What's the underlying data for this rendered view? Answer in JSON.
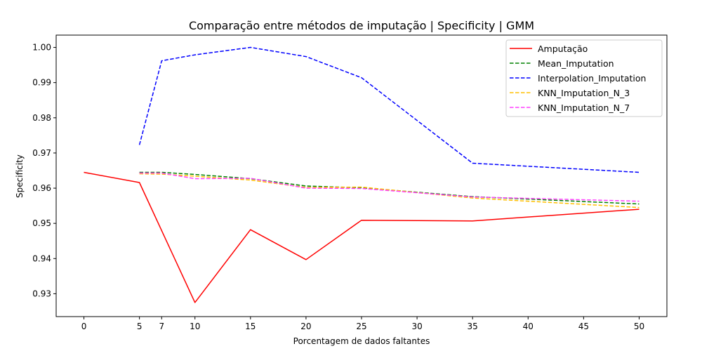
{
  "chart_data": {
    "type": "line",
    "title": "Comparação entre métodos de imputação | Specificity | GMM",
    "xlabel": "Porcentagem de dados faltantes",
    "ylabel": "Specificity",
    "xlim": [
      -2.5,
      52.5
    ],
    "ylim": [
      0.9235,
      1.0035
    ],
    "xticks": [
      0,
      5,
      7,
      10,
      15,
      20,
      25,
      30,
      35,
      40,
      45,
      50
    ],
    "xtick_labels": [
      "0",
      "5",
      "7",
      "10",
      "15",
      "20",
      "25",
      "30",
      "35",
      "40",
      "45",
      "50"
    ],
    "yticks": [
      0.93,
      0.94,
      0.95,
      0.96,
      0.97,
      0.98,
      0.99,
      1.0
    ],
    "ytick_labels": [
      "0.93",
      "0.94",
      "0.95",
      "0.96",
      "0.97",
      "0.98",
      "0.99",
      "1.00"
    ],
    "grid": false,
    "legend_position": "top-right",
    "series": [
      {
        "name": "Amputação",
        "color": "#ff0000",
        "style": "solid",
        "x": [
          0,
          5,
          10,
          15,
          20,
          25,
          35,
          50
        ],
        "y": [
          0.9645,
          0.9616,
          0.9275,
          0.9482,
          0.9397,
          0.9509,
          0.9507,
          0.954
        ]
      },
      {
        "name": "Mean_Imputation",
        "color": "#008000",
        "style": "dashed",
        "x": [
          5,
          7,
          10,
          15,
          20,
          25,
          35,
          50
        ],
        "y": [
          0.9645,
          0.9645,
          0.9639,
          0.9627,
          0.9606,
          0.9601,
          0.9576,
          0.9555
        ]
      },
      {
        "name": "Interpolation_Imputation",
        "color": "#0000ff",
        "style": "dashed",
        "x": [
          5,
          7,
          10,
          15,
          20,
          25,
          35,
          50
        ],
        "y": [
          0.9723,
          0.9962,
          0.9979,
          1.0,
          0.9974,
          0.9914,
          0.9671,
          0.9645
        ]
      },
      {
        "name": "KNN_Imputation_N_3",
        "color": "#ffbf00",
        "style": "dashed",
        "x": [
          5,
          7,
          10,
          15,
          20,
          25,
          35,
          50
        ],
        "y": [
          0.9641,
          0.964,
          0.9634,
          0.9623,
          0.9602,
          0.9603,
          0.9572,
          0.9545
        ]
      },
      {
        "name": "KNN_Imputation_N_7",
        "color": "#ff40ff",
        "style": "dashed",
        "x": [
          5,
          7,
          10,
          15,
          20,
          25,
          35,
          50
        ],
        "y": [
          0.9643,
          0.9643,
          0.9627,
          0.9628,
          0.96,
          0.9599,
          0.9575,
          0.9563
        ]
      }
    ]
  }
}
